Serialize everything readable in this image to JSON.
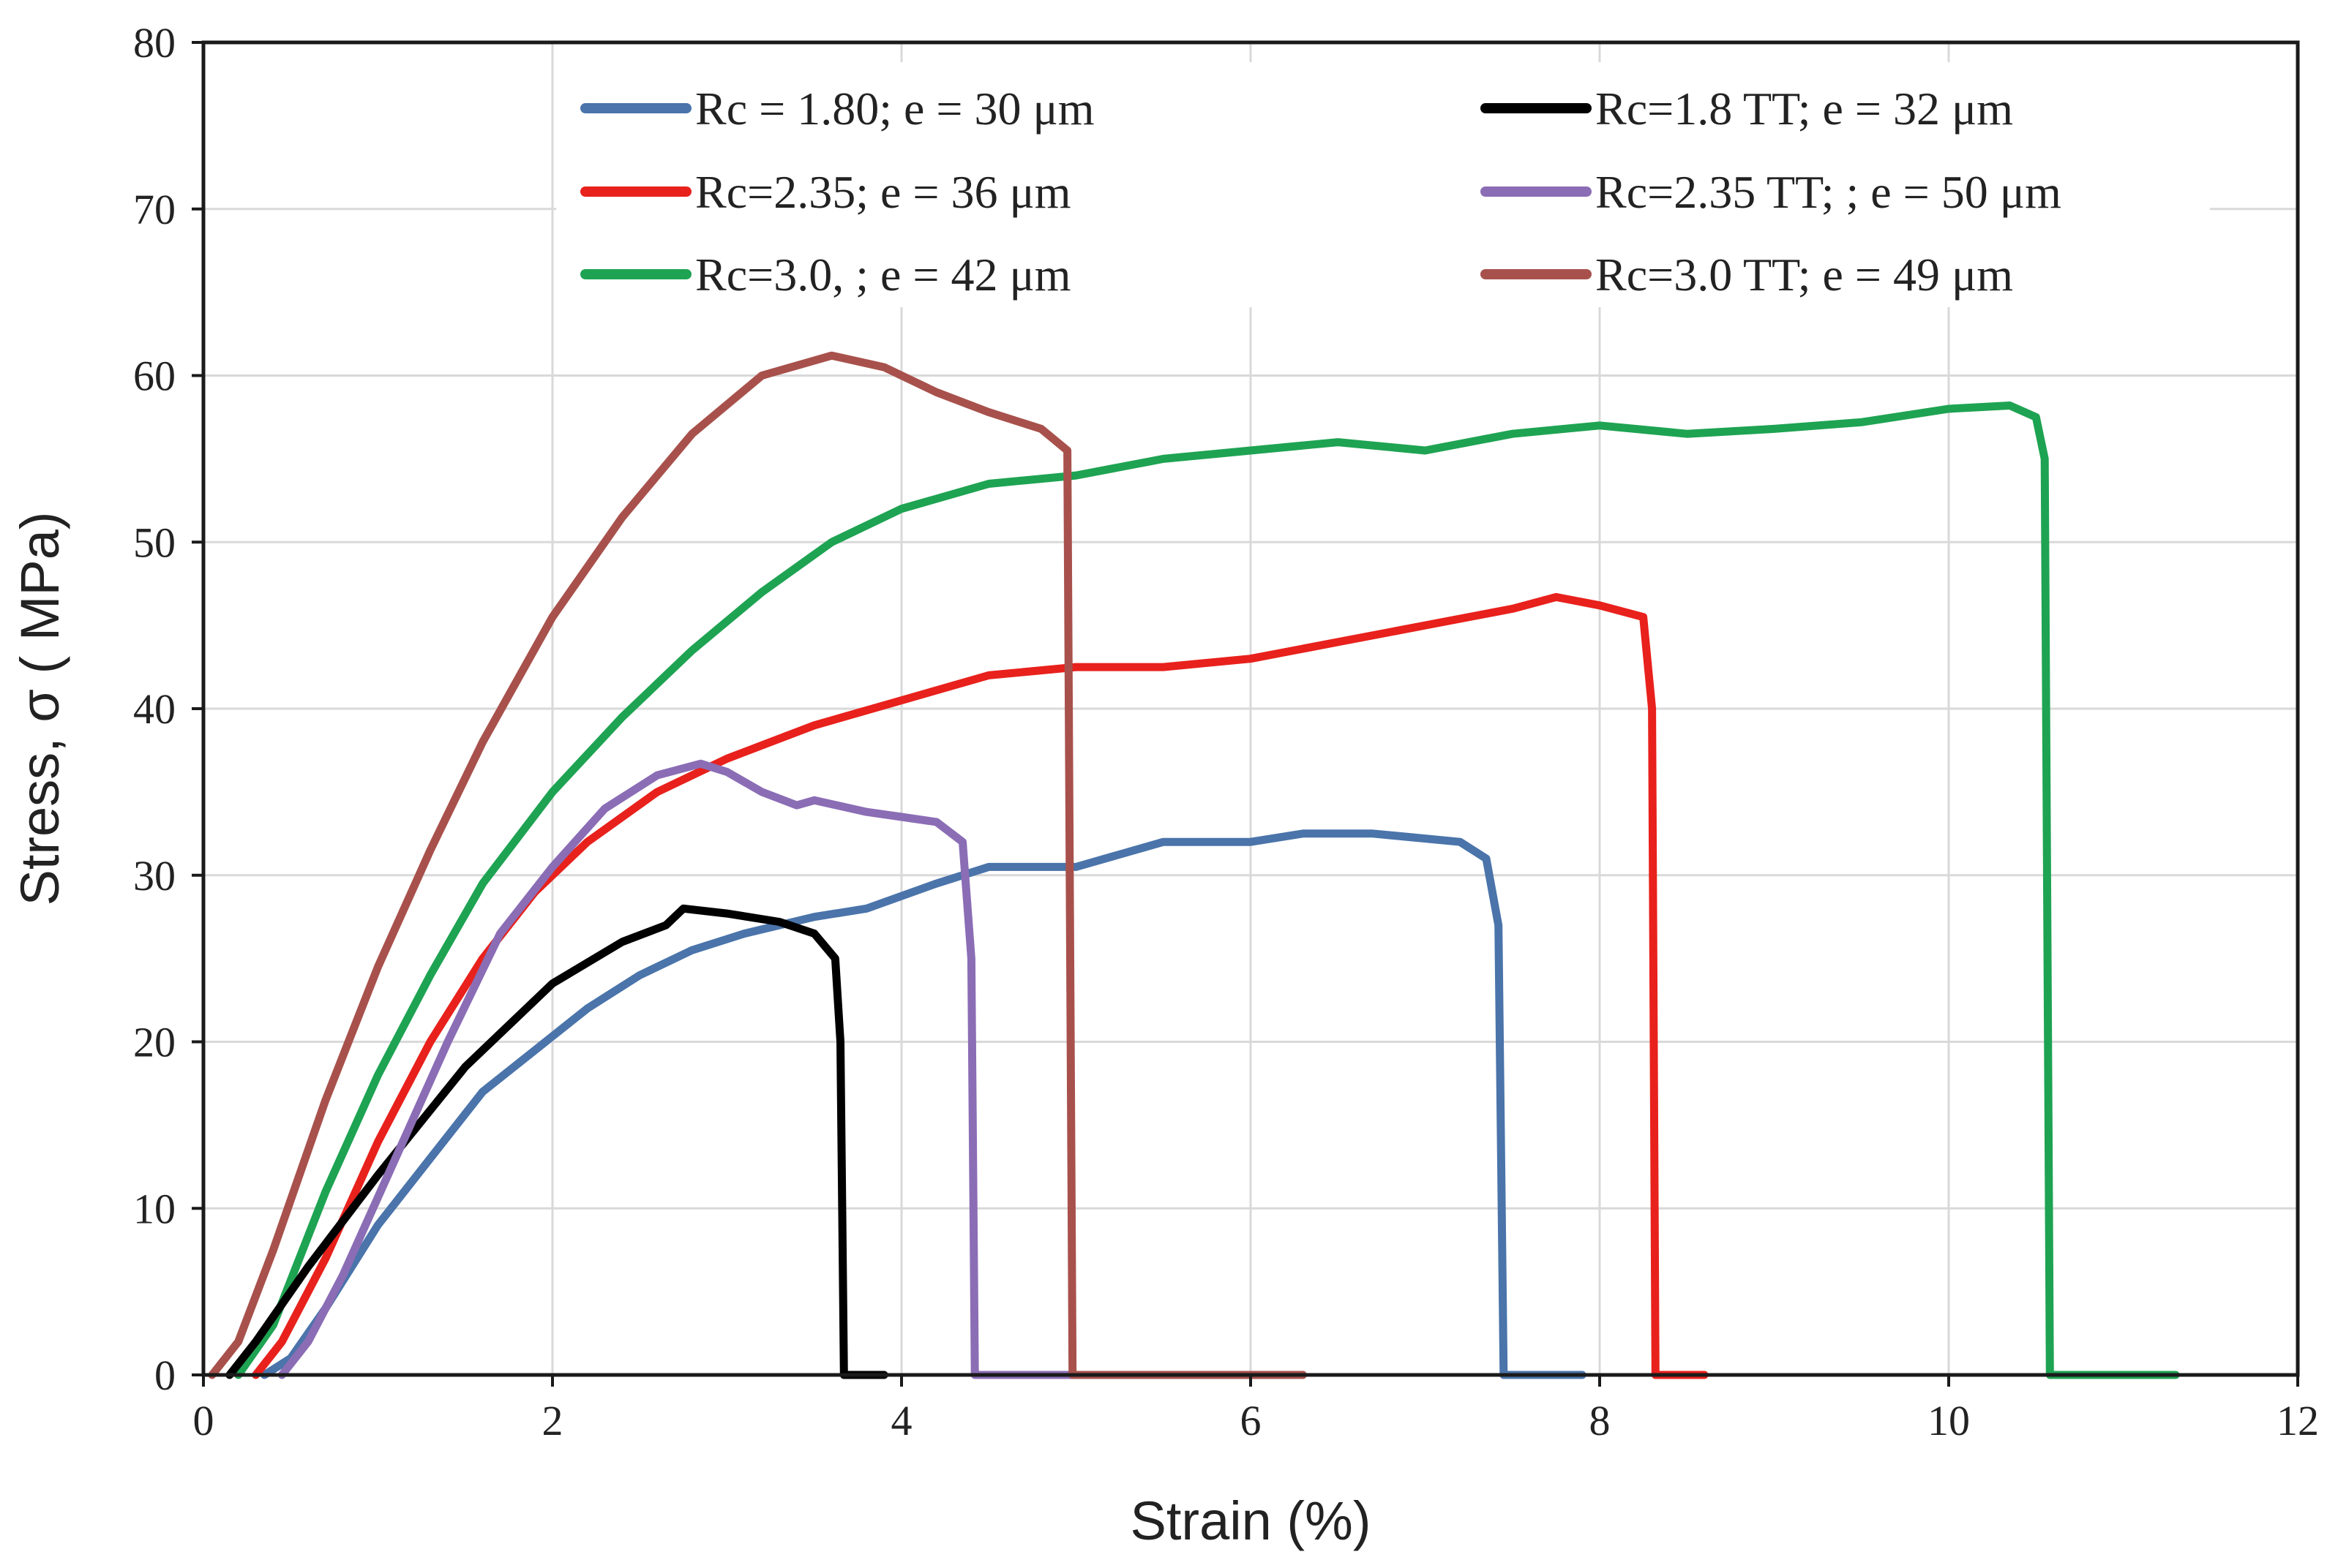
{
  "chart_data": {
    "type": "line",
    "title": "",
    "xlabel": "Strain (%)",
    "ylabel": "Stress, σ ( MPa)",
    "xlim": [
      0,
      12
    ],
    "ylim": [
      0,
      80
    ],
    "xticks": [
      0,
      2,
      4,
      6,
      8,
      10,
      12
    ],
    "yticks": [
      0,
      10,
      20,
      30,
      40,
      50,
      60,
      70,
      80
    ],
    "grid": true,
    "legend_position": "top-center, two columns",
    "series": [
      {
        "name": "Rc = 1.80; e = 30 μm",
        "color": "#4a74aa",
        "points": [
          [
            0.35,
            0
          ],
          [
            0.5,
            1
          ],
          [
            0.7,
            4
          ],
          [
            1.0,
            9
          ],
          [
            1.3,
            13
          ],
          [
            1.6,
            17
          ],
          [
            1.9,
            19.5
          ],
          [
            2.2,
            22
          ],
          [
            2.5,
            24
          ],
          [
            2.8,
            25.5
          ],
          [
            3.1,
            26.5
          ],
          [
            3.5,
            27.5
          ],
          [
            3.8,
            28
          ],
          [
            4.2,
            29.5
          ],
          [
            4.5,
            30.5
          ],
          [
            5.0,
            30.5
          ],
          [
            5.5,
            32
          ],
          [
            6.0,
            32
          ],
          [
            6.3,
            32.5
          ],
          [
            6.7,
            32.5
          ],
          [
            7.2,
            32
          ],
          [
            7.35,
            31
          ],
          [
            7.42,
            27
          ],
          [
            7.45,
            0
          ],
          [
            7.9,
            0
          ]
        ]
      },
      {
        "name": "Rc=2.35; e = 36 μm",
        "color": "#e8211c",
        "points": [
          [
            0.3,
            0
          ],
          [
            0.45,
            2
          ],
          [
            0.7,
            7
          ],
          [
            1.0,
            14
          ],
          [
            1.3,
            20
          ],
          [
            1.6,
            25
          ],
          [
            1.9,
            29
          ],
          [
            2.2,
            32
          ],
          [
            2.6,
            35
          ],
          [
            3.0,
            37
          ],
          [
            3.5,
            39
          ],
          [
            4.0,
            40.5
          ],
          [
            4.5,
            42
          ],
          [
            5.0,
            42.5
          ],
          [
            5.5,
            42.5
          ],
          [
            6.0,
            43
          ],
          [
            6.5,
            44
          ],
          [
            7.0,
            45
          ],
          [
            7.5,
            46
          ],
          [
            7.75,
            46.7
          ],
          [
            8.0,
            46.2
          ],
          [
            8.25,
            45.5
          ],
          [
            8.3,
            40
          ],
          [
            8.32,
            0
          ],
          [
            8.6,
            0
          ]
        ]
      },
      {
        "name": "Rc=3.0, ; e = 42 μm",
        "color": "#1ea352",
        "points": [
          [
            0.2,
            0
          ],
          [
            0.4,
            3
          ],
          [
            0.7,
            11
          ],
          [
            1.0,
            18
          ],
          [
            1.3,
            24
          ],
          [
            1.6,
            29.5
          ],
          [
            2.0,
            35
          ],
          [
            2.4,
            39.5
          ],
          [
            2.8,
            43.5
          ],
          [
            3.2,
            47
          ],
          [
            3.6,
            50
          ],
          [
            4.0,
            52
          ],
          [
            4.5,
            53.5
          ],
          [
            5.0,
            54
          ],
          [
            5.5,
            55
          ],
          [
            6.0,
            55.5
          ],
          [
            6.5,
            56
          ],
          [
            7.0,
            55.5
          ],
          [
            7.5,
            56.5
          ],
          [
            8.0,
            57
          ],
          [
            8.5,
            56.5
          ],
          [
            9.0,
            56.8
          ],
          [
            9.5,
            57.2
          ],
          [
            10.0,
            58
          ],
          [
            10.35,
            58.2
          ],
          [
            10.5,
            57.5
          ],
          [
            10.55,
            55
          ],
          [
            10.58,
            0
          ],
          [
            11.3,
            0
          ]
        ]
      },
      {
        "name": "Rc=1.8 TT; e = 32 μm",
        "color": "#000000",
        "points": [
          [
            0.15,
            0
          ],
          [
            0.3,
            2
          ],
          [
            0.6,
            6.5
          ],
          [
            1.0,
            12
          ],
          [
            1.5,
            18.5
          ],
          [
            2.0,
            23.5
          ],
          [
            2.4,
            26
          ],
          [
            2.65,
            27
          ],
          [
            2.75,
            28
          ],
          [
            3.0,
            27.7
          ],
          [
            3.3,
            27.2
          ],
          [
            3.5,
            26.5
          ],
          [
            3.62,
            25
          ],
          [
            3.65,
            20
          ],
          [
            3.67,
            0
          ],
          [
            3.9,
            0
          ]
        ]
      },
      {
        "name": "Rc=2.35 TT; ; e = 50 μm",
        "color": "#8b6db5",
        "points": [
          [
            0.45,
            0
          ],
          [
            0.6,
            2
          ],
          [
            0.8,
            6
          ],
          [
            1.1,
            13
          ],
          [
            1.4,
            20
          ],
          [
            1.7,
            26.5
          ],
          [
            2.0,
            30.5
          ],
          [
            2.3,
            34
          ],
          [
            2.6,
            36
          ],
          [
            2.85,
            36.7
          ],
          [
            3.0,
            36.2
          ],
          [
            3.2,
            35
          ],
          [
            3.4,
            34.2
          ],
          [
            3.5,
            34.5
          ],
          [
            3.8,
            33.8
          ],
          [
            4.0,
            33.5
          ],
          [
            4.2,
            33.2
          ],
          [
            4.35,
            32
          ],
          [
            4.4,
            25
          ],
          [
            4.42,
            0
          ],
          [
            5.0,
            0
          ]
        ]
      },
      {
        "name": "Rc=3.0 TT; e = 49 μm",
        "color": "#a8514c",
        "points": [
          [
            0.05,
            0
          ],
          [
            0.2,
            2
          ],
          [
            0.4,
            7.5
          ],
          [
            0.7,
            16.5
          ],
          [
            1.0,
            24.5
          ],
          [
            1.3,
            31.5
          ],
          [
            1.6,
            38
          ],
          [
            2.0,
            45.5
          ],
          [
            2.4,
            51.5
          ],
          [
            2.8,
            56.5
          ],
          [
            3.2,
            60
          ],
          [
            3.6,
            61.2
          ],
          [
            3.9,
            60.5
          ],
          [
            4.2,
            59
          ],
          [
            4.5,
            57.8
          ],
          [
            4.8,
            56.8
          ],
          [
            4.95,
            55.5
          ],
          [
            4.98,
            0
          ],
          [
            6.3,
            0
          ]
        ]
      }
    ]
  }
}
